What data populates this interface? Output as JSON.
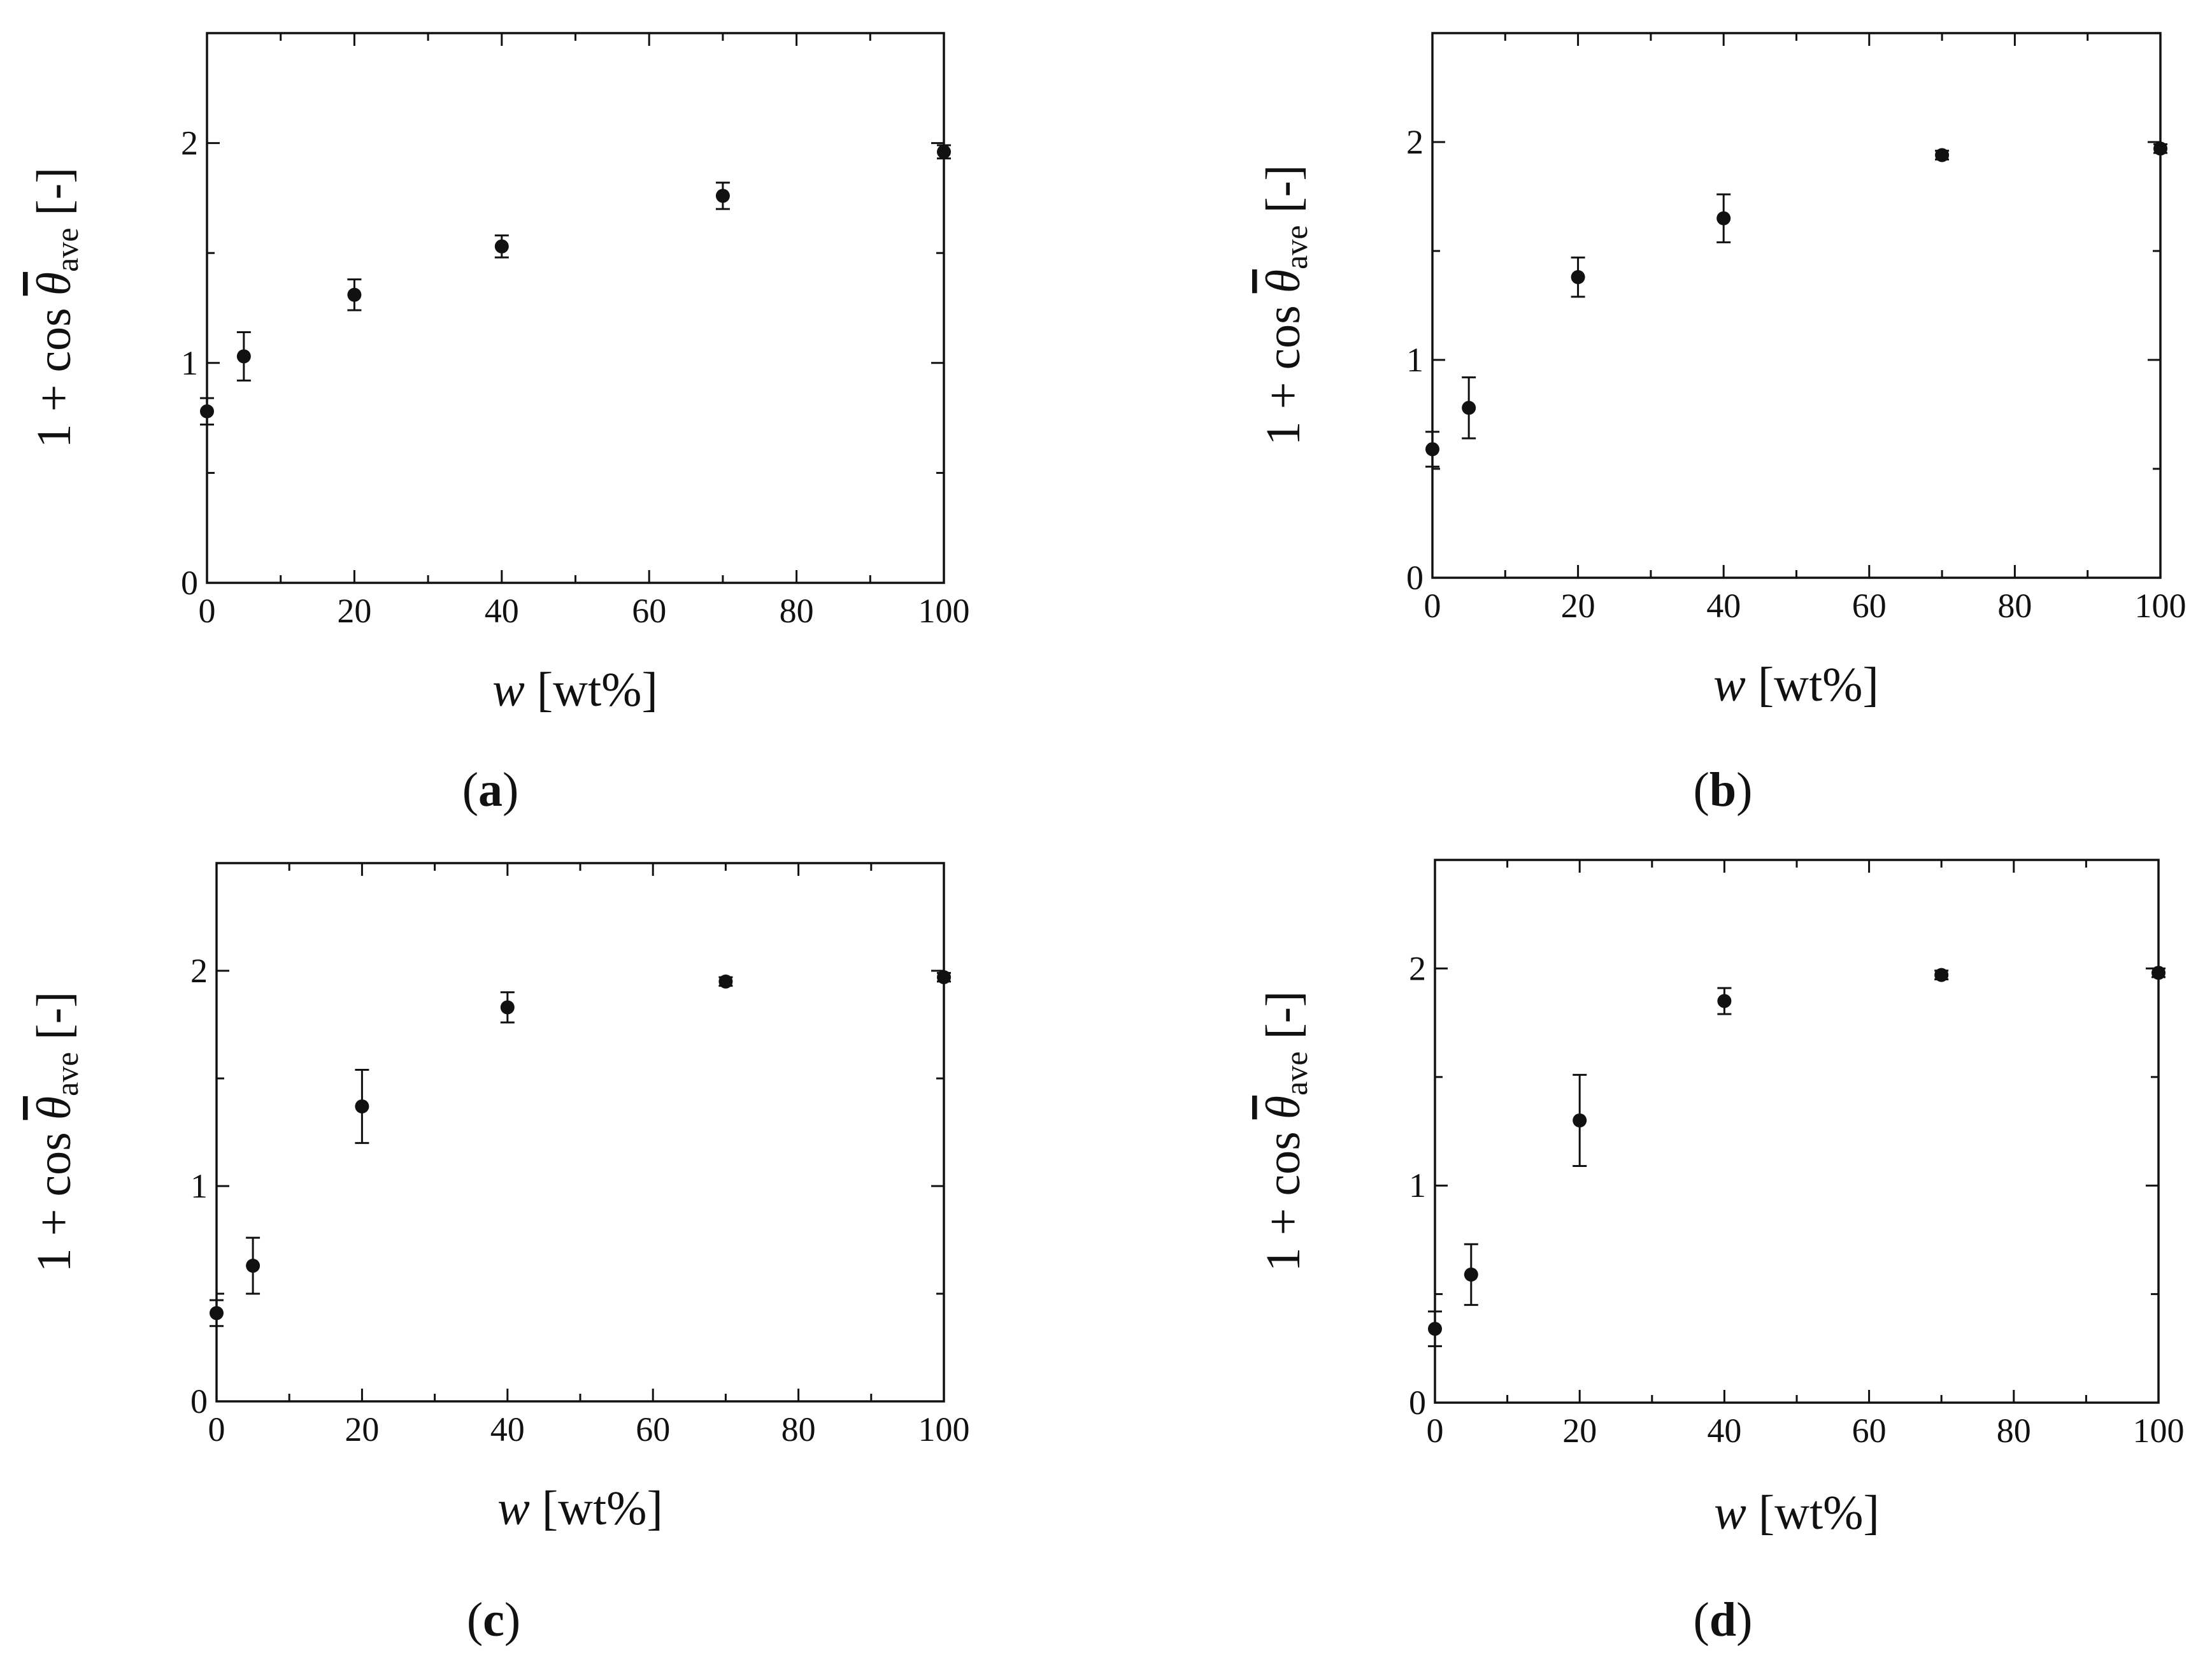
{
  "figure": {
    "panels": [
      "a",
      "b",
      "c",
      "d"
    ],
    "marker_color": "#111111",
    "background": "#ffffff"
  },
  "chart_data": [
    {
      "id": "a",
      "type": "scatter",
      "panel_label": "a",
      "xlabel": "w [wt%]",
      "xlabel_var": "w",
      "xlabel_unit": "[wt%]",
      "ylabel_prefix": "1 + cos",
      "ylabel_symbol": "θ",
      "ylabel_subscript": "ave",
      "ylabel_unit": "[-]",
      "xlim": [
        0,
        100
      ],
      "ylim": [
        0,
        2.5
      ],
      "xticks": [
        0,
        20,
        40,
        60,
        80,
        100
      ],
      "yticks": [
        0,
        1,
        2
      ],
      "grid": false,
      "series": [
        {
          "name": "1 + cos θave",
          "x": [
            0,
            5,
            20,
            40,
            70,
            100
          ],
          "y": [
            0.78,
            1.03,
            1.31,
            1.53,
            1.76,
            1.96
          ],
          "err": [
            0.06,
            0.11,
            0.07,
            0.05,
            0.06,
            0.03
          ]
        }
      ]
    },
    {
      "id": "b",
      "type": "scatter",
      "panel_label": "b",
      "xlabel": "w [wt%]",
      "xlabel_var": "w",
      "xlabel_unit": "[wt%]",
      "ylabel_prefix": "1 + cos",
      "ylabel_symbol": "θ",
      "ylabel_subscript": "ave",
      "ylabel_unit": "[-]",
      "xlim": [
        0,
        100
      ],
      "ylim": [
        0,
        2.5
      ],
      "xticks": [
        0,
        20,
        40,
        60,
        80,
        100
      ],
      "yticks": [
        0,
        1,
        2
      ],
      "grid": false,
      "series": [
        {
          "name": "1 + cos θave",
          "x": [
            0,
            5,
            20,
            40,
            70,
            100
          ],
          "y": [
            0.59,
            0.78,
            1.38,
            1.65,
            1.94,
            1.97
          ],
          "err": [
            0.08,
            0.14,
            0.09,
            0.11,
            0.02,
            0.02
          ]
        }
      ]
    },
    {
      "id": "c",
      "type": "scatter",
      "panel_label": "c",
      "xlabel": "w [wt%]",
      "xlabel_var": "w",
      "xlabel_unit": "[wt%]",
      "ylabel_prefix": "1 + cos",
      "ylabel_symbol": "θ",
      "ylabel_subscript": "ave",
      "ylabel_unit": "[-]",
      "xlim": [
        0,
        100
      ],
      "ylim": [
        0,
        2.5
      ],
      "xticks": [
        0,
        20,
        40,
        60,
        80,
        100
      ],
      "yticks": [
        0,
        1,
        2
      ],
      "grid": false,
      "series": [
        {
          "name": "1 + cos θave",
          "x": [
            0,
            5,
            20,
            40,
            70,
            100
          ],
          "y": [
            0.41,
            0.63,
            1.37,
            1.83,
            1.95,
            1.97
          ],
          "err": [
            0.06,
            0.13,
            0.17,
            0.07,
            0.02,
            0.02
          ]
        }
      ]
    },
    {
      "id": "d",
      "type": "scatter",
      "panel_label": "d",
      "xlabel": "w [wt%]",
      "xlabel_var": "w",
      "xlabel_unit": "[wt%]",
      "ylabel_prefix": "1 + cos",
      "ylabel_symbol": "θ",
      "ylabel_subscript": "ave",
      "ylabel_unit": "[-]",
      "xlim": [
        0,
        100
      ],
      "ylim": [
        0,
        2.5
      ],
      "xticks": [
        0,
        20,
        40,
        60,
        80,
        100
      ],
      "yticks": [
        0,
        1,
        2
      ],
      "grid": false,
      "series": [
        {
          "name": "1 + cos θave",
          "x": [
            0,
            5,
            20,
            40,
            70,
            100
          ],
          "y": [
            0.34,
            0.59,
            1.3,
            1.85,
            1.97,
            1.98
          ],
          "err": [
            0.08,
            0.14,
            0.21,
            0.06,
            0.02,
            0.02
          ]
        }
      ]
    }
  ]
}
